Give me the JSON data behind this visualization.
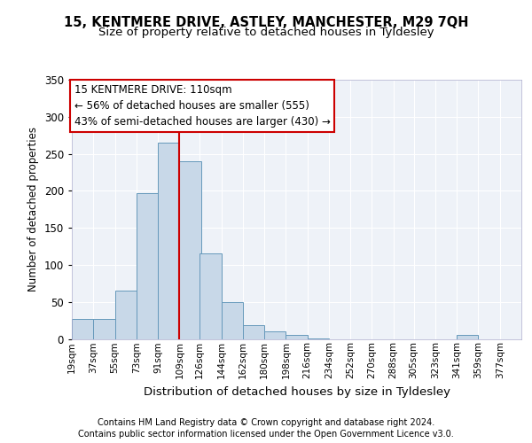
{
  "title1": "15, KENTMERE DRIVE, ASTLEY, MANCHESTER, M29 7QH",
  "title2": "Size of property relative to detached houses in Tyldesley",
  "xlabel": "Distribution of detached houses by size in Tyldesley",
  "ylabel": "Number of detached properties",
  "footnote1": "Contains HM Land Registry data © Crown copyright and database right 2024.",
  "footnote2": "Contains public sector information licensed under the Open Government Licence v3.0.",
  "annotation_line1": "15 KENTMERE DRIVE: 110sqm",
  "annotation_line2": "← 56% of detached houses are smaller (555)",
  "annotation_line3": "43% of semi-detached houses are larger (430) →",
  "bar_color": "#c8d8e8",
  "bar_edge_color": "#6699bb",
  "vline_color": "#cc0000",
  "background_color": "#eef2f8",
  "grid_color": "#ffffff",
  "categories": [
    "19sqm",
    "37sqm",
    "55sqm",
    "73sqm",
    "91sqm",
    "109sqm",
    "126sqm",
    "144sqm",
    "162sqm",
    "180sqm",
    "198sqm",
    "216sqm",
    "234sqm",
    "252sqm",
    "270sqm",
    "288sqm",
    "305sqm",
    "323sqm",
    "341sqm",
    "359sqm",
    "377sqm"
  ],
  "bin_edges": [
    19,
    37,
    55,
    73,
    91,
    109,
    126,
    144,
    162,
    180,
    198,
    216,
    234,
    252,
    270,
    288,
    305,
    323,
    341,
    359,
    377
  ],
  "bar_heights": [
    27,
    27,
    65,
    197,
    265,
    240,
    115,
    50,
    18,
    10,
    5,
    1,
    0,
    0,
    0,
    0,
    0,
    0,
    5,
    0,
    0
  ],
  "ylim": [
    0,
    350
  ],
  "yticks": [
    0,
    50,
    100,
    150,
    200,
    250,
    300,
    350
  ]
}
